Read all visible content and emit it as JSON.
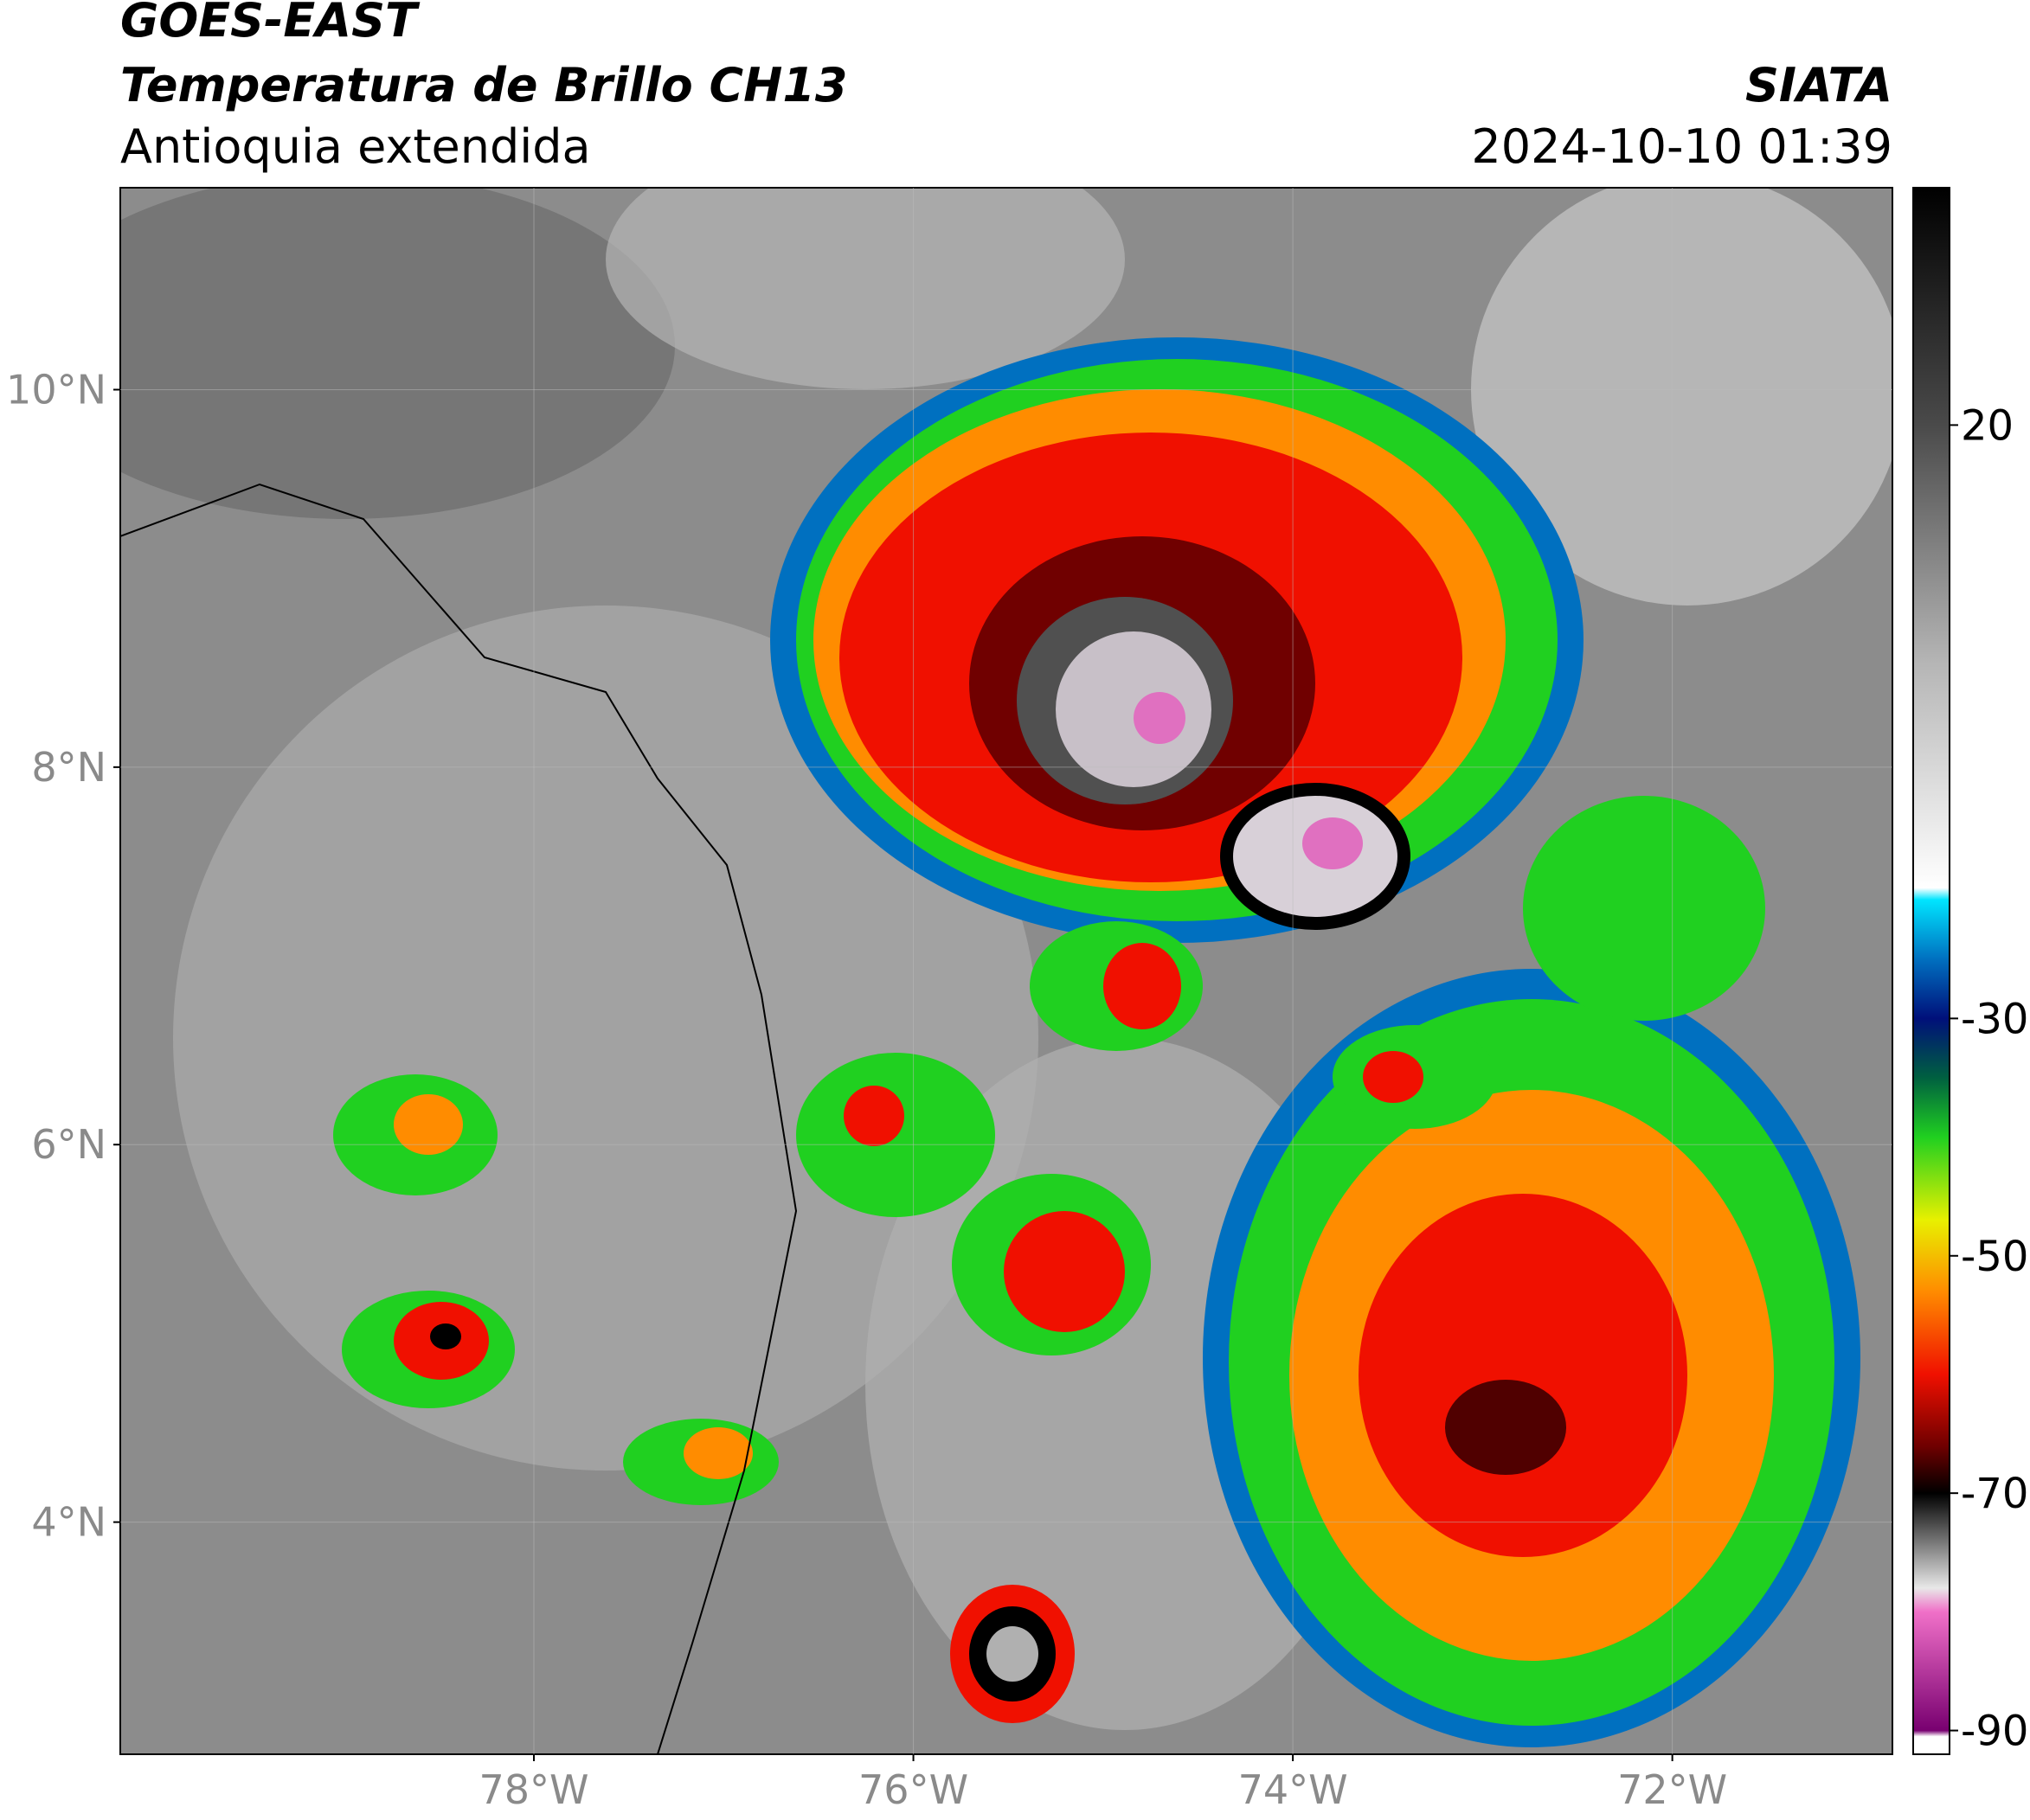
{
  "header": {
    "title": "GOES-EAST",
    "subtitle": "Temperatura de Brillo CH13",
    "region": "Antioquia extendida",
    "source": "SIATA",
    "datetime": "2024-10-10 01:39"
  },
  "map": {
    "lon_range": [
      -80.18,
      -70.84
    ],
    "lat_range": [
      2.77,
      11.07
    ],
    "lon_ticks": [
      {
        "value": -78,
        "label": "78°W"
      },
      {
        "value": -76,
        "label": "76°W"
      },
      {
        "value": -74,
        "label": "74°W"
      },
      {
        "value": -72,
        "label": "72°W"
      }
    ],
    "lat_ticks": [
      {
        "value": 10,
        "label": "10°N"
      },
      {
        "value": 8,
        "label": "8°N"
      },
      {
        "value": 6,
        "label": "6°N"
      },
      {
        "value": 4,
        "label": "4°N"
      }
    ]
  },
  "colorbar": {
    "range": [
      -92,
      40
    ],
    "ticks": [
      20,
      -30,
      -50,
      -70,
      -90
    ],
    "stops": [
      {
        "value": 40,
        "color": "#000000"
      },
      {
        "value": 20,
        "color": "#4a4a4a"
      },
      {
        "value": 0,
        "color": "#b5b5b5"
      },
      {
        "value": -19,
        "color": "#ffffff"
      },
      {
        "value": -20,
        "color": "#00e5ff"
      },
      {
        "value": -25,
        "color": "#0070c0"
      },
      {
        "value": -30,
        "color": "#00107a"
      },
      {
        "value": -35,
        "color": "#006040"
      },
      {
        "value": -40,
        "color": "#20d020"
      },
      {
        "value": -47,
        "color": "#e8f000"
      },
      {
        "value": -53,
        "color": "#ff8c00"
      },
      {
        "value": -60,
        "color": "#f01000"
      },
      {
        "value": -66,
        "color": "#700000"
      },
      {
        "value": -70,
        "color": "#000000"
      },
      {
        "value": -78,
        "color": "#e8e8e8"
      },
      {
        "value": -80,
        "color": "#f070c8"
      },
      {
        "value": -90,
        "color": "#780070"
      },
      {
        "value": -90.5,
        "color": "#ffffff"
      },
      {
        "value": -92,
        "color": "#ffffff"
      }
    ]
  }
}
